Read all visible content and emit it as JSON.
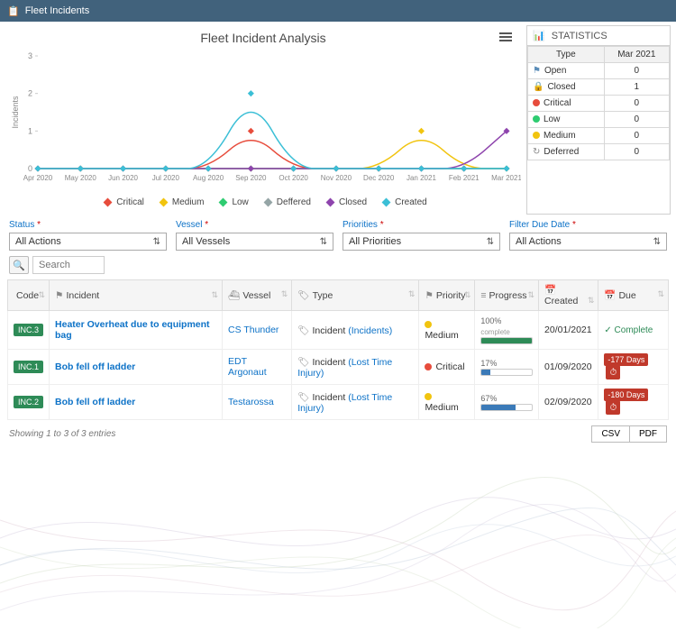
{
  "header": {
    "title": "Fleet Incidents"
  },
  "chart": {
    "title": "Fleet Incident Analysis",
    "type": "line",
    "y_label": "Incidents",
    "y_ticks": [
      0,
      1,
      2,
      3
    ],
    "ylim": [
      0,
      3
    ],
    "background_color": "#ffffff",
    "axis_color": "#cccccc",
    "tick_font_size": 9,
    "label_font_size": 9,
    "categories": [
      "Apr 2020",
      "May 2020",
      "Jun 2020",
      "Jul 2020",
      "Aug 2020",
      "Sep 2020",
      "Oct 2020",
      "Nov 2020",
      "Dec 2020",
      "Jan 2021",
      "Feb 2021",
      "Mar 2021"
    ],
    "series": [
      {
        "name": "Critical",
        "color": "#e74c3c",
        "marker": "diamond",
        "values": [
          0,
          0,
          0,
          0,
          0,
          1,
          0,
          0,
          0,
          0,
          0,
          0
        ]
      },
      {
        "name": "Medium",
        "color": "#f1c40f",
        "marker": "diamond",
        "values": [
          0,
          0,
          0,
          0,
          0,
          0,
          0,
          0,
          0,
          1,
          0,
          0
        ]
      },
      {
        "name": "Low",
        "color": "#2ecc71",
        "marker": "diamond",
        "values": [
          0,
          0,
          0,
          0,
          0,
          0,
          0,
          0,
          0,
          0,
          0,
          0
        ]
      },
      {
        "name": "Deffered",
        "color": "#95a5a6",
        "marker": "diamond",
        "values": [
          0,
          0,
          0,
          0,
          0,
          0,
          0,
          0,
          0,
          0,
          0,
          0
        ]
      },
      {
        "name": "Closed",
        "color": "#8e44ad",
        "marker": "diamond",
        "values": [
          0,
          0,
          0,
          0,
          0,
          0,
          0,
          0,
          0,
          0,
          0,
          1
        ]
      },
      {
        "name": "Created",
        "color": "#3bbfd6",
        "marker": "diamond",
        "values": [
          0,
          0,
          0,
          0,
          0,
          2,
          0,
          0,
          0,
          0,
          0,
          0
        ]
      }
    ]
  },
  "stats": {
    "title": "STATISTICS",
    "columns": [
      "Type",
      "Mar 2021"
    ],
    "rows": [
      {
        "icon": "open",
        "icon_color": "#5b8db8",
        "label": "Open",
        "value": 0
      },
      {
        "icon": "closed",
        "icon_color": "#888888",
        "label": "Closed",
        "value": 1
      },
      {
        "icon": "dot",
        "icon_color": "#e74c3c",
        "label": "Critical",
        "value": 0
      },
      {
        "icon": "dot",
        "icon_color": "#2ecc71",
        "label": "Low",
        "value": 0
      },
      {
        "icon": "dot",
        "icon_color": "#f1c40f",
        "label": "Medium",
        "value": 0
      },
      {
        "icon": "deferred",
        "icon_color": "#888888",
        "label": "Deferred",
        "value": 0
      }
    ]
  },
  "filters": {
    "status": {
      "label": "Status",
      "required": true,
      "value": "All Actions"
    },
    "vessel": {
      "label": "Vessel",
      "required": true,
      "value": "All Vessels"
    },
    "priorities": {
      "label": "Priorities",
      "required": true,
      "value": "All Priorities"
    },
    "due": {
      "label": "Filter Due Date",
      "required": true,
      "value": "All Actions"
    }
  },
  "search": {
    "placeholder": "Search"
  },
  "table": {
    "columns": [
      {
        "key": "code",
        "label": "Code",
        "icon": "</>"
      },
      {
        "key": "incident",
        "label": "Incident",
        "icon": "⚑"
      },
      {
        "key": "vessel",
        "label": "Vessel",
        "icon": "⛴"
      },
      {
        "key": "type",
        "label": "Type",
        "icon": "🏷"
      },
      {
        "key": "priority",
        "label": "Priority",
        "icon": "⚑"
      },
      {
        "key": "progress",
        "label": "Progress",
        "icon": "≡"
      },
      {
        "key": "created",
        "label": "Created",
        "icon": "📅"
      },
      {
        "key": "due",
        "label": "Due",
        "icon": "📅"
      }
    ],
    "rows": [
      {
        "code": "INC.3",
        "incident": "Heater Overheat due to equipment bag",
        "vessel": "CS Thunder",
        "type": "Incident",
        "type_sub": "(Incidents)",
        "priority": "Medium",
        "priority_color": "#f1c40f",
        "progress_pct": 100,
        "progress_label": "100%",
        "progress_note": "complete",
        "progress_color": "#2e8b57",
        "created": "20/01/2021",
        "due_text": "Complete",
        "due_complete": true
      },
      {
        "code": "INC.1",
        "incident": "Bob fell off ladder",
        "vessel": "EDT Argonaut",
        "type": "Incident",
        "type_sub": "(Lost Time Injury)",
        "priority": "Critical",
        "priority_color": "#e74c3c",
        "progress_pct": 17,
        "progress_label": "17%",
        "progress_note": "",
        "progress_color": "#3b7ab8",
        "created": "01/09/2020",
        "due_text": "-177 Days",
        "due_complete": false
      },
      {
        "code": "INC.2",
        "incident": "Bob fell off ladder",
        "vessel": "Testarossa",
        "type": "Incident",
        "type_sub": "(Lost Time Injury)",
        "priority": "Medium",
        "priority_color": "#f1c40f",
        "progress_pct": 67,
        "progress_label": "67%",
        "progress_note": "",
        "progress_color": "#3b7ab8",
        "created": "02/09/2020",
        "due_text": "-180 Days",
        "due_complete": false
      }
    ],
    "footer_text": "Showing 1 to 3 of 3 entries",
    "export": {
      "csv": "CSV",
      "pdf": "PDF"
    }
  },
  "waves": {
    "colors": [
      "#c7b9d4",
      "#b8c5d6",
      "#d4b8c5",
      "#c5d4b8"
    ],
    "opacity": 0.35
  }
}
